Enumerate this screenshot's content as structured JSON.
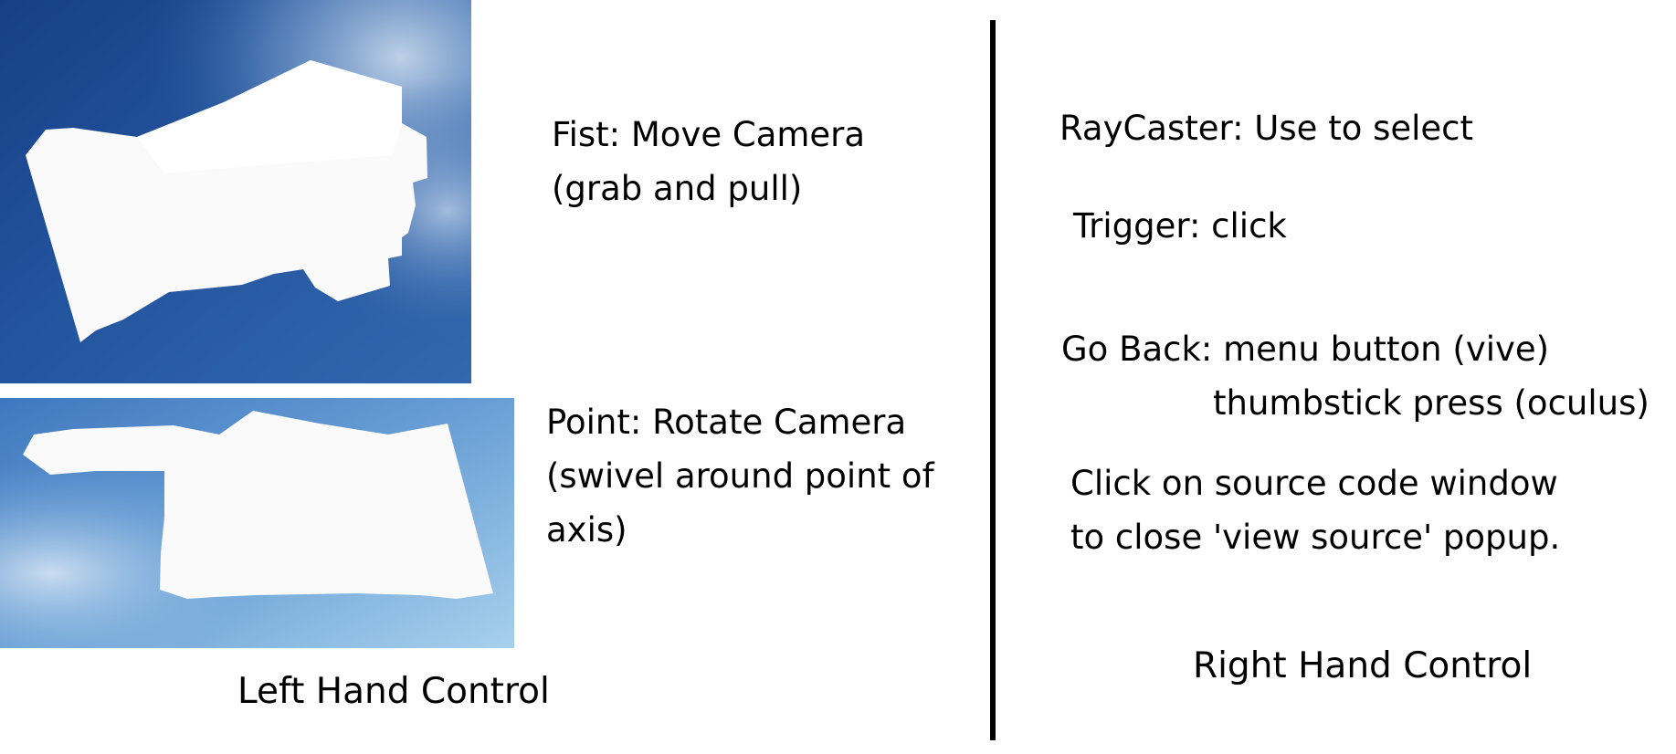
{
  "left": {
    "fist": {
      "icon": "fist-hand-icon",
      "line1": "Fist: Move Camera",
      "line2": "(grab and pull)"
    },
    "point": {
      "icon": "pointing-hand-icon",
      "line1": "Point: Rotate Camera",
      "line2": "(swivel around point of",
      "line3": "axis)"
    },
    "footer": "Left Hand Control"
  },
  "right": {
    "raycaster": "RayCaster: Use to select",
    "trigger": "Trigger: click",
    "go_back": {
      "line1": "Go Back: menu button (vive)",
      "line2": "thumbstick press (oculus)"
    },
    "source_code": {
      "line1": "Click on source code window",
      "line2": "to close 'view source' popup."
    },
    "footer": "Right Hand Control"
  },
  "colors": {
    "sky_dark": "#1f4f95",
    "sky_mid": "#3a72b8",
    "sky_light": "#9cc8e8",
    "hand": "#fafafa",
    "divider": "#000000"
  }
}
